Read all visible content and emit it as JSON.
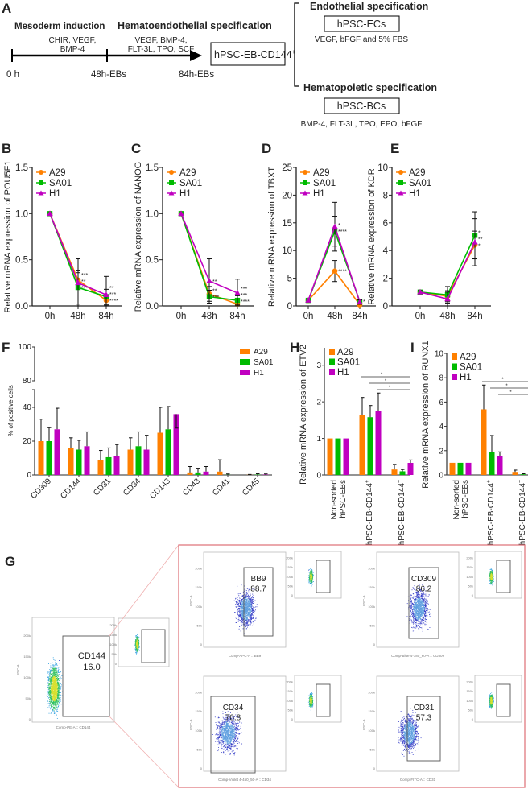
{
  "panel_labels": {
    "A": "A",
    "B": "B",
    "C": "C",
    "D": "D",
    "E": "E",
    "F": "F",
    "G": "G",
    "H": "H",
    "I": "I"
  },
  "schematic": {
    "stage1_title": "Mesoderm induction",
    "stage1_factors": [
      "CHIR, VEGF,",
      "BMP-4"
    ],
    "stage2_title": "Hematoendothelial specification",
    "stage2_factors": [
      "VEGF, BMP-4,",
      "FLT-3L, TPO, SCF"
    ],
    "timepoints": [
      "0 h",
      "48h-EBs",
      "84h-EBs"
    ],
    "product_box": "hPSC-EB-CD144",
    "product_sup": "+",
    "branch1_title": "Endothelial specification",
    "branch1_box": "hPSC-ECs",
    "branch1_factors": "VEGF, bFGF and 5% FBS",
    "branch2_title": "Hematopoietic specification",
    "branch2_box": "hPSC-BCs",
    "branch2_factors": "BMP-4, FLT-3L, TPO, EPO, bFGF"
  },
  "colors": {
    "A29": "#ff8000",
    "SA01": "#00bb00",
    "H1": "#c000c0",
    "gate_frame": "#e07a80"
  },
  "chart_data": [
    {
      "id": "B",
      "type": "line",
      "ylabel": "Relative mRNA expression of POU5F1",
      "categories": [
        "0h",
        "48h",
        "84h"
      ],
      "ylim": [
        0,
        1.5
      ],
      "yticks": [
        "0.0",
        "0.5",
        "1.0",
        "1.5"
      ],
      "ytick_values": [
        0,
        0.5,
        1.0,
        1.5
      ],
      "series": [
        {
          "name": "A29",
          "values": [
            1,
            0.28,
            0.06
          ],
          "err": [
            0,
            0.08,
            0.05
          ],
          "sig": [
            "",
            "***",
            "****"
          ]
        },
        {
          "name": "SA01",
          "values": [
            1,
            0.2,
            0.1
          ],
          "err": [
            0,
            0.18,
            0.08
          ],
          "sig": [
            "",
            "***",
            "***"
          ]
        },
        {
          "name": "H1",
          "values": [
            1,
            0.25,
            0.12
          ],
          "err": [
            0,
            0.26,
            0.2
          ],
          "sig": [
            "",
            "**",
            "**"
          ]
        }
      ]
    },
    {
      "id": "C",
      "type": "line",
      "ylabel": "Relative mRNA expression of NANOG",
      "categories": [
        "0h",
        "48h",
        "84h"
      ],
      "ylim": [
        0,
        1.5
      ],
      "yticks": [
        "0.0",
        "0.5",
        "1.0",
        "1.5"
      ],
      "ytick_values": [
        0,
        0.5,
        1.0,
        1.5
      ],
      "series": [
        {
          "name": "A29",
          "values": [
            1,
            0.13,
            0.02
          ],
          "err": [
            0,
            0.08,
            0.03
          ],
          "sig": [
            "",
            "**",
            "****"
          ]
        },
        {
          "name": "SA01",
          "values": [
            1,
            0.1,
            0.06
          ],
          "err": [
            0,
            0.07,
            0.05
          ],
          "sig": [
            "",
            "***",
            "***"
          ]
        },
        {
          "name": "H1",
          "values": [
            1,
            0.27,
            0.14
          ],
          "err": [
            0,
            0.24,
            0.15
          ],
          "sig": [
            "",
            "**",
            "***"
          ]
        }
      ]
    },
    {
      "id": "D",
      "type": "line",
      "ylabel": "Relative mRNA expression of TBXT",
      "categories": [
        "0h",
        "48h",
        "84h"
      ],
      "ylim": [
        0,
        25
      ],
      "yticks": [
        "0",
        "5",
        "10",
        "15",
        "20",
        "25"
      ],
      "ytick_values": [
        0,
        5,
        10,
        15,
        20,
        25
      ],
      "series": [
        {
          "name": "A29",
          "values": [
            1,
            6.3,
            0.2
          ],
          "err": [
            0,
            1.9,
            0.3
          ],
          "sig": [
            "",
            "****",
            ""
          ]
        },
        {
          "name": "SA01",
          "values": [
            1,
            13.5,
            0.8
          ],
          "err": [
            0,
            2.7,
            0.4
          ],
          "sig": [
            "",
            "****",
            ""
          ]
        },
        {
          "name": "H1",
          "values": [
            1,
            14.3,
            0.7
          ],
          "err": [
            0,
            4.4,
            0.4
          ],
          "sig": [
            "",
            "*",
            "*"
          ]
        }
      ]
    },
    {
      "id": "E",
      "type": "line",
      "ylabel": "Relative mRNA expression of KDR",
      "categories": [
        "0h",
        "48h",
        "84h"
      ],
      "ylim": [
        0,
        10
      ],
      "yticks": [
        "0",
        "2",
        "4",
        "6",
        "8",
        "10"
      ],
      "ytick_values": [
        0,
        2,
        4,
        6,
        8,
        10
      ],
      "series": [
        {
          "name": "A29",
          "values": [
            1,
            0.7,
            4.4
          ],
          "err": [
            0.1,
            0.4,
            1.0
          ],
          "sig": [
            "",
            "",
            "*"
          ]
        },
        {
          "name": "SA01",
          "values": [
            1,
            0.8,
            5.1
          ],
          "err": [
            0.1,
            0.6,
            1.7
          ],
          "sig": [
            "",
            "",
            "*"
          ]
        },
        {
          "name": "H1",
          "values": [
            1,
            0.5,
            4.6
          ],
          "err": [
            0.1,
            0.5,
            1.7
          ],
          "sig": [
            "",
            "",
            "**"
          ]
        }
      ]
    },
    {
      "id": "F",
      "type": "bar",
      "ylabel": "% of positive cells",
      "legend": "top-right",
      "categories": [
        "CD309",
        "CD144",
        "CD31",
        "CD34",
        "CD143",
        "CD43",
        "CD41",
        "CD45"
      ],
      "yticks_lower": [
        "0",
        "20",
        "40"
      ],
      "ytick_values_lower": [
        0,
        20,
        40
      ],
      "yticks_upper": [
        "80",
        "100"
      ],
      "ytick_values_upper": [
        80,
        100
      ],
      "axis_break": [
        50,
        80
      ],
      "series": [
        {
          "name": "A29",
          "values": [
            20,
            16,
            9,
            15,
            25,
            1.5,
            2,
            0.1
          ],
          "err": [
            13,
            6,
            5.5,
            7,
            15,
            3.5,
            7,
            0.2
          ]
        },
        {
          "name": "SA01",
          "values": [
            20,
            15,
            10.5,
            17,
            27,
            1.5,
            0.1,
            0.2
          ],
          "err": [
            8,
            5.5,
            5.5,
            8.5,
            13.5,
            2.5,
            0.5,
            0.5
          ]
        },
        {
          "name": "H1",
          "values": [
            27,
            17,
            11,
            15,
            36,
            2,
            0,
            0.2
          ],
          "err": [
            12.5,
            8.5,
            7,
            8.5,
            16,
            3,
            0,
            0.4
          ]
        }
      ]
    },
    {
      "id": "H",
      "type": "bar",
      "ylabel": "Relative mRNA expression of ETV2",
      "legend": "top-left",
      "categories": [
        [
          "Non-sorted",
          "hPSC-EBs"
        ],
        [
          "hPSC-EB-CD144",
          "+"
        ],
        [
          "hPSC-EB-CD144",
          "−"
        ]
      ],
      "ylim": [
        0,
        3.5
      ],
      "yticks": [
        "0",
        "1",
        "2",
        "3"
      ],
      "ytick_values": [
        0,
        1,
        2,
        3
      ],
      "series": [
        {
          "name": "A29",
          "values": [
            1,
            1.65,
            0.15
          ],
          "err": [
            0,
            0.47,
            0.14
          ]
        },
        {
          "name": "SA01",
          "values": [
            1,
            1.58,
            0.1
          ],
          "err": [
            0,
            0.32,
            0.05
          ]
        },
        {
          "name": "H1",
          "values": [
            1,
            1.76,
            0.33
          ],
          "err": [
            0,
            0.48,
            0.08
          ]
        }
      ],
      "sig_bars": [
        "*",
        "*",
        "*"
      ]
    },
    {
      "id": "I",
      "type": "bar",
      "ylabel": "Relative mRNA expression of RUNX1",
      "legend": "top-left",
      "categories": [
        [
          "Non-sorted",
          "hPSC-EBs"
        ],
        [
          "hPSC-EB-CD144",
          "+"
        ],
        [
          "hPSC-EB-CD144",
          "−"
        ]
      ],
      "ylim": [
        0,
        10
      ],
      "yticks": [
        "0",
        "2",
        "4",
        "6",
        "8",
        "10"
      ],
      "ytick_values": [
        0,
        2,
        4,
        6,
        8,
        10
      ],
      "series": [
        {
          "name": "A29",
          "values": [
            1,
            5.4,
            0.25
          ],
          "err": [
            0,
            2.0,
            0.15
          ]
        },
        {
          "name": "SA01",
          "values": [
            1,
            1.9,
            0.05
          ],
          "err": [
            0,
            1.35,
            0.05
          ]
        },
        {
          "name": "H1",
          "values": [
            1,
            1.55,
            0.05
          ],
          "err": [
            0,
            0.35,
            0.05
          ]
        }
      ],
      "sig_bars": [
        "*",
        "*",
        "*"
      ]
    }
  ],
  "flow": {
    "main": {
      "gate": "CD144",
      "value": "16.0",
      "xlabel": "Comp-PE-A :: CD144",
      "ylabel": "FSC-A"
    },
    "panels": [
      {
        "gate": "BB9",
        "value": "88.7",
        "xlabel": "Comp-APC-A :: BB9",
        "ylabel": "FSC-A"
      },
      {
        "gate": "CD309",
        "value": "86.2",
        "xlabel": "Comp-Blue 4-780_60-A :: CD309",
        "ylabel": "FSC-A"
      },
      {
        "gate": "CD34",
        "value": "70.8",
        "xlabel": "Comp-Violet 4-450_50-A :: CD34",
        "ylabel": "FSC-A"
      },
      {
        "gate": "CD31",
        "value": "57.3",
        "xlabel": "Comp-FITC-A :: CD31",
        "ylabel": "FSC-A"
      }
    ]
  }
}
